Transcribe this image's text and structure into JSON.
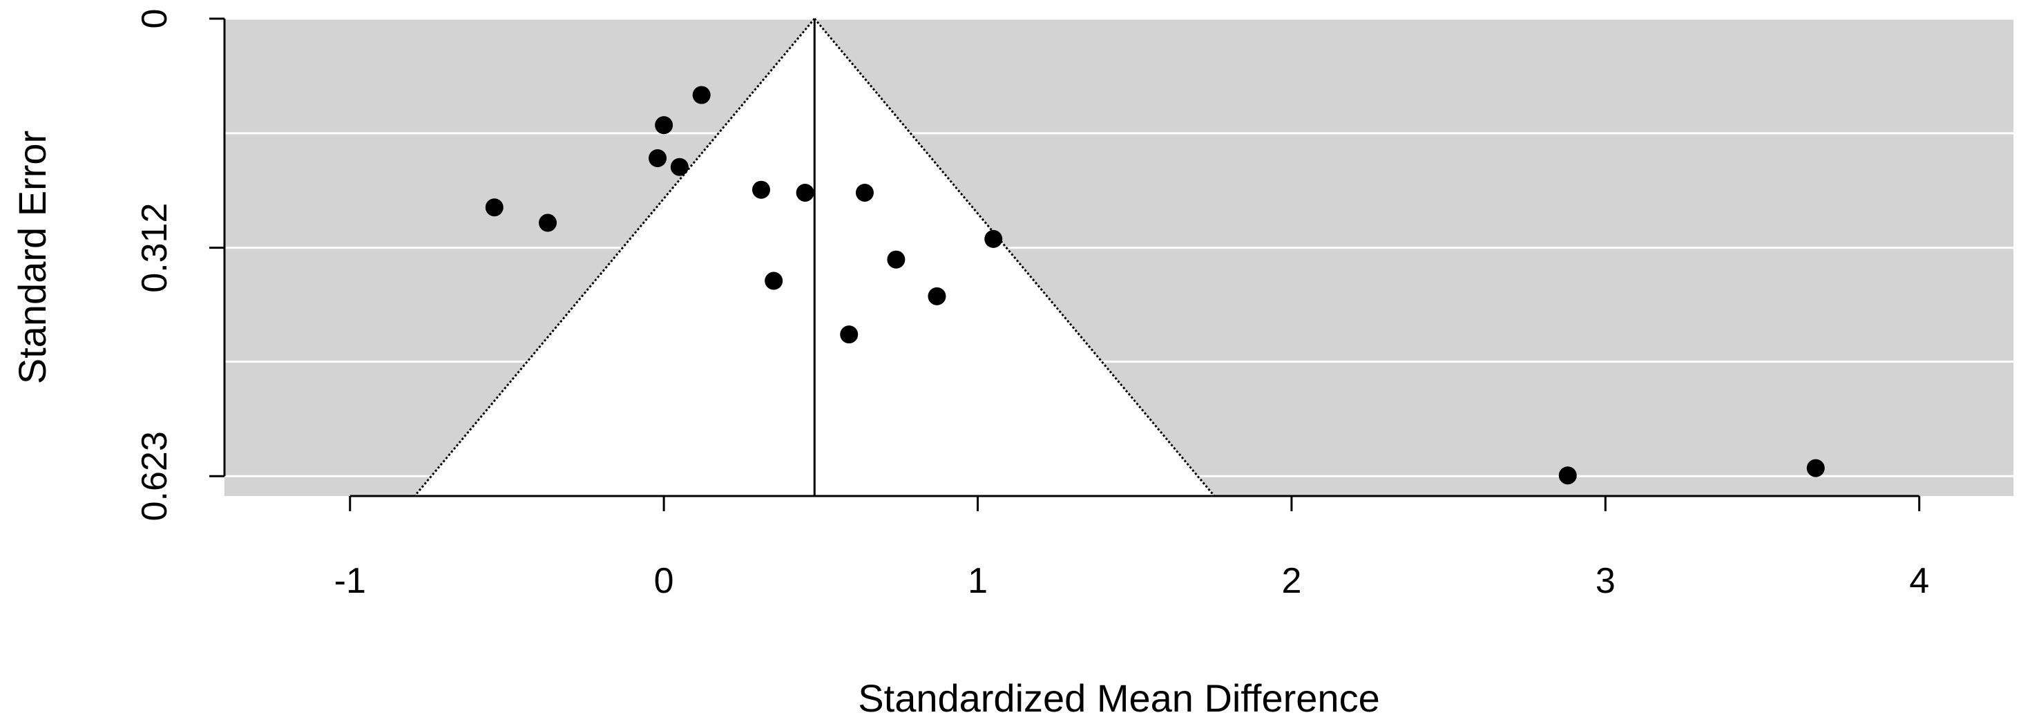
{
  "chart_data": {
    "type": "scatter",
    "subtype": "funnel",
    "title": "",
    "xlabel": "Standardized Mean Difference",
    "ylabel": "Standard Error",
    "xlim": [
      -1.4,
      4.3
    ],
    "ylim": [
      0,
      0.65
    ],
    "y_reversed": true,
    "x_ticks": [
      -1,
      0,
      1,
      2,
      3,
      4
    ],
    "x_tick_labels": [
      "-1",
      "0",
      "1",
      "2",
      "3",
      "4"
    ],
    "y_ticks": [
      0,
      0.312,
      0.623
    ],
    "y_tick_labels": [
      "0",
      "0.312",
      "0.623"
    ],
    "y_gridlines": [
      0,
      0.156,
      0.312,
      0.467,
      0.623
    ],
    "grid": true,
    "center_line": 0.48,
    "funnel_halfwidth_multiplier": 1.96,
    "colors": {
      "panel_background": "#d3d3d3",
      "funnel_fill": "#ffffff",
      "gridline": "#ffffff",
      "points": "#000000"
    },
    "points": [
      {
        "x": 0.12,
        "y": 0.104
      },
      {
        "x": 0.0,
        "y": 0.145
      },
      {
        "x": -0.02,
        "y": 0.19
      },
      {
        "x": 0.05,
        "y": 0.202
      },
      {
        "x": -0.54,
        "y": 0.257
      },
      {
        "x": -0.37,
        "y": 0.278
      },
      {
        "x": 0.31,
        "y": 0.233
      },
      {
        "x": 0.45,
        "y": 0.237
      },
      {
        "x": 0.64,
        "y": 0.237
      },
      {
        "x": 1.05,
        "y": 0.3
      },
      {
        "x": 0.74,
        "y": 0.328
      },
      {
        "x": 0.35,
        "y": 0.357
      },
      {
        "x": 0.87,
        "y": 0.378
      },
      {
        "x": 0.59,
        "y": 0.43
      },
      {
        "x": 2.88,
        "y": 0.622
      },
      {
        "x": 3.67,
        "y": 0.612
      }
    ]
  }
}
